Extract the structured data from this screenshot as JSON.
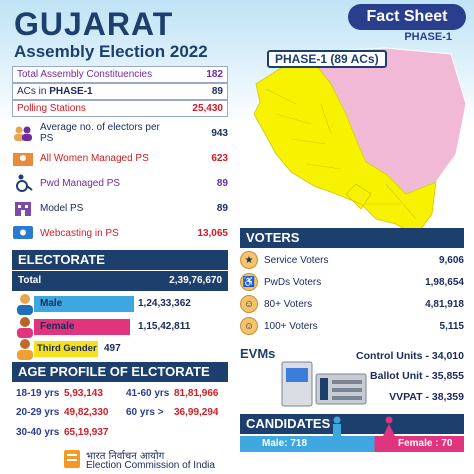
{
  "header": {
    "title": "GUJARAT",
    "subtitle": "Assembly Election 2022",
    "fact_sheet": "Fact Sheet",
    "phase": "PHASE-1"
  },
  "stats": [
    {
      "label": "Total Assembly Constituencies",
      "value": "182"
    },
    {
      "label_pre": "ACs in ",
      "label_bold": "PHASE-1",
      "value": "89"
    },
    {
      "label": "Polling Stations",
      "value": "25,430"
    },
    {
      "label": "Average no. of electors per PS",
      "value": "943",
      "icon": "people-group-icon"
    },
    {
      "label": "All Women Managed PS",
      "value": "623",
      "icon": "women-icon"
    },
    {
      "label": "Pwd Managed PS",
      "value": "89",
      "icon": "wheelchair-icon"
    },
    {
      "label": "Model PS",
      "value": "89",
      "icon": "building-icon"
    },
    {
      "label": "Webcasting in PS",
      "value": "13,065",
      "icon": "webcast-icon"
    }
  ],
  "map": {
    "label_pre": "PHASE-1 (",
    "label_num": "89",
    "label_post": " ACs)",
    "phase1_color": "#f7f200",
    "other_color": "#f1b9d6"
  },
  "electorate": {
    "heading": "ELECTORATE",
    "total_label": "Total",
    "total_value": "2,39,76,670",
    "male_label": "Male",
    "male_value": "1,24,33,362",
    "female_label": "Female",
    "female_value": "1,15,42,811",
    "third_label": "Third Gender",
    "third_value": "497",
    "colors": {
      "male": "#3fa7e0",
      "female": "#e0357d",
      "third": "#f4e01e"
    }
  },
  "voters": {
    "heading": "VOTERS",
    "rows": [
      {
        "label": "Service Voters",
        "value": "9,606",
        "icon": "soldier-icon"
      },
      {
        "label": "PwDs Voters",
        "value": "1,98,654",
        "icon": "pwd-icon"
      },
      {
        "label": "80+ Voters",
        "value": "4,81,918",
        "icon": "elderly-icon"
      },
      {
        "label": "100+ Voters",
        "value": "5,115",
        "icon": "centenarian-icon"
      }
    ]
  },
  "evms": {
    "heading": "EVMs",
    "rows": [
      {
        "label": "Control Units",
        "value": "34,010"
      },
      {
        "label": "Ballot Unit",
        "value": "35,855"
      },
      {
        "label": "VVPAT",
        "value": "38,359"
      }
    ]
  },
  "age_profile": {
    "heading": "AGE PROFILE OF ELCTORATE",
    "rows": [
      {
        "label": "18-19 yrs",
        "value": "5,93,143"
      },
      {
        "label": "41-60 yrs",
        "value": "81,81,966"
      },
      {
        "label": "20-29 yrs",
        "value": "49,82,330"
      },
      {
        "label": "60 yrs >",
        "value": "36,99,294"
      },
      {
        "label": "30-40 yrs",
        "value": "65,19,937"
      }
    ]
  },
  "candidates": {
    "heading": "CANDIDATES",
    "male_label": "Male:",
    "male_value": "718",
    "female_label": "Female :",
    "female_value": "70"
  },
  "footer": {
    "hindi": "भारत निर्वाचन आयोग",
    "english": "Election Commission of India"
  }
}
